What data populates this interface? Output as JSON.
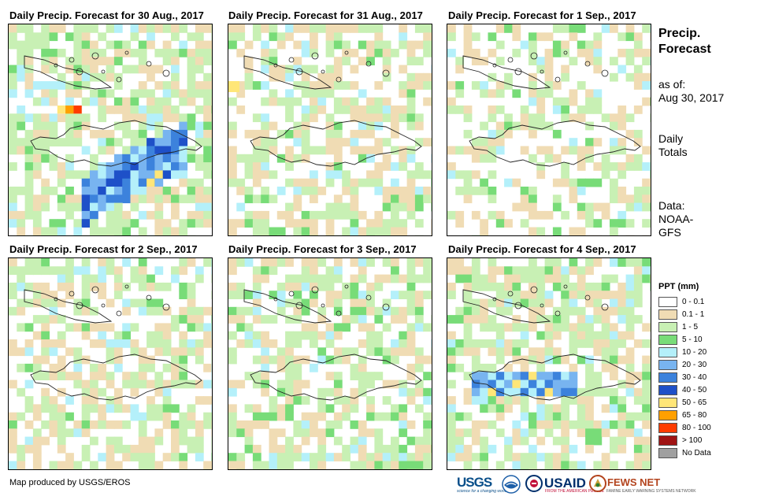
{
  "panels": [
    {
      "title": "Daily Precip. Forecast for 30 Aug., 2017"
    },
    {
      "title": "Daily Precip. Forecast for 31 Aug., 2017"
    },
    {
      "title": "Daily Precip. Forecast for 1 Sep., 2017"
    },
    {
      "title": "Daily Precip. Forecast for 2 Sep., 2017"
    },
    {
      "title": "Daily Precip. Forecast for 3 Sep., 2017"
    },
    {
      "title": "Daily Precip. Forecast for 4 Sep., 2017"
    }
  ],
  "side": {
    "title_line1": "Precip.",
    "title_line2": "Forecast",
    "asof_line1": "as of:",
    "asof_line2": "Aug 30, 2017",
    "totals_line1": "Daily",
    "totals_line2": "Totals",
    "data_line1": "Data:",
    "data_line2": "NOAA-",
    "data_line3": "GFS"
  },
  "legend": {
    "title": "PPT (mm)",
    "items": [
      {
        "label": "0 - 0.1",
        "color": "#ffffff"
      },
      {
        "label": "0.1 - 1",
        "color": "#f0dcb4"
      },
      {
        "label": "1 - 5",
        "color": "#c8f0b4"
      },
      {
        "label": "5 - 10",
        "color": "#78dc78"
      },
      {
        "label": "10 - 20",
        "color": "#b4f0fa"
      },
      {
        "label": "20 - 30",
        "color": "#78b4f0"
      },
      {
        "label": "30 - 40",
        "color": "#3c82dc"
      },
      {
        "label": "40 - 50",
        "color": "#1e50c8"
      },
      {
        "label": "50 - 65",
        "color": "#ffe678"
      },
      {
        "label": "65 - 80",
        "color": "#ffa000"
      },
      {
        "label": "80 - 100",
        "color": "#ff3c00"
      },
      {
        "label": "> 100",
        "color": "#a01414"
      },
      {
        "label": "No Data",
        "color": "#a0a0a0"
      }
    ]
  },
  "footer": {
    "credit": "Map produced by USGS/EROS",
    "logo_usgs": "USGS",
    "logo_usgs_tagline": "science for a changing world",
    "logo_usaid": "USAID",
    "logo_usaid_tagline": "FROM THE AMERICAN PEOPLE",
    "logo_fews": "FEWS NET",
    "logo_fews_tagline": "FAMINE EARLY WARNING SYSTEMS NETWORK"
  }
}
